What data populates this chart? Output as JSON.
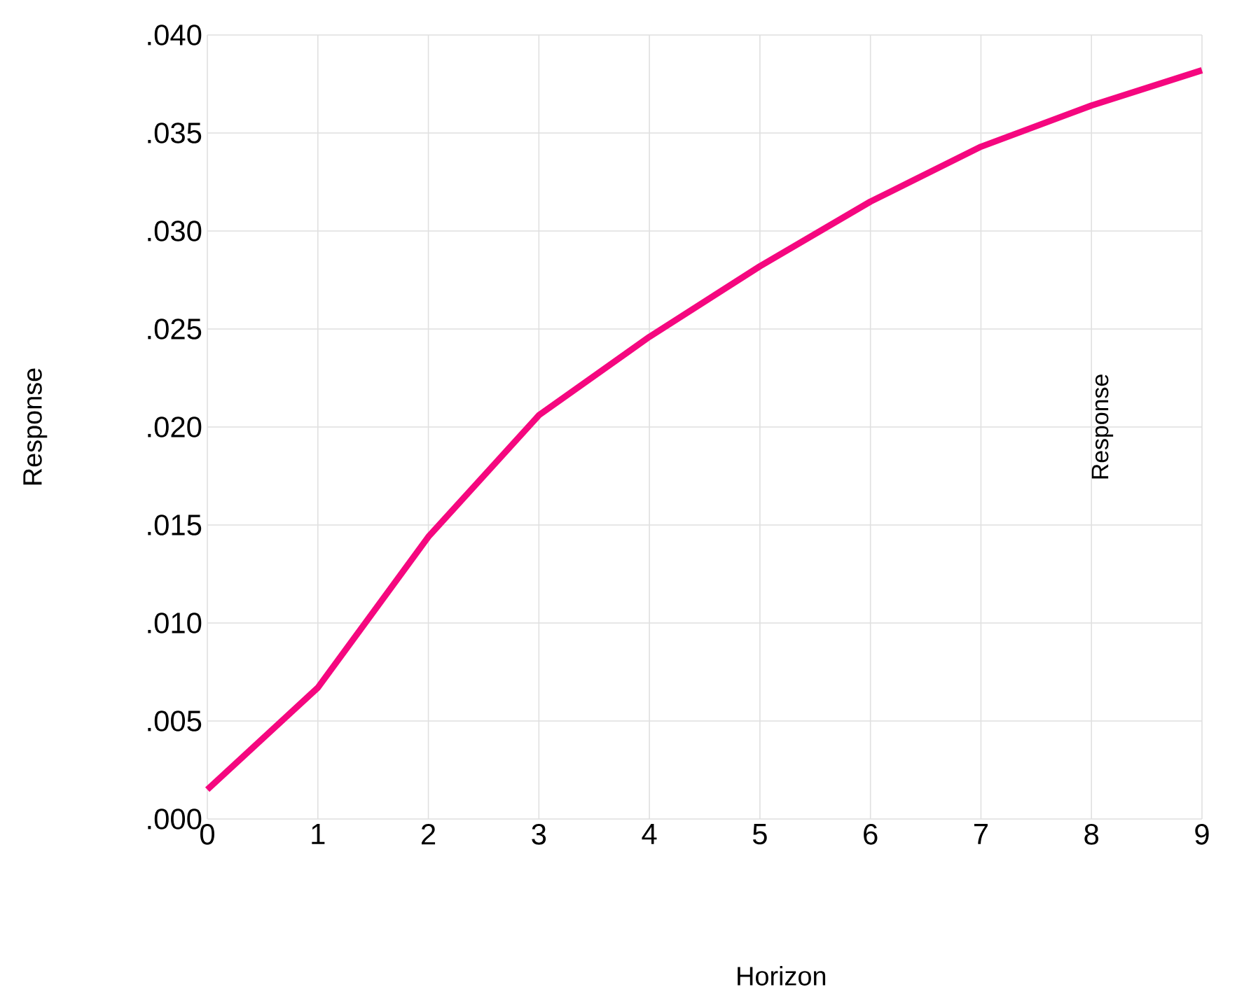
{
  "chart_data": {
    "type": "line",
    "xlabel": "Horizon",
    "ylabel": "Response",
    "annotations": [
      "Response"
    ],
    "x": [
      0,
      1,
      2,
      3,
      4,
      5,
      6,
      7,
      8,
      9
    ],
    "series": [
      {
        "color": "#f5077f",
        "values": [
          0.0015,
          0.0067,
          0.0144,
          0.0206,
          0.0246,
          0.0282,
          0.0315,
          0.0343,
          0.0364,
          0.0382
        ]
      }
    ],
    "xlim": [
      0,
      9
    ],
    "xticks": [
      0,
      1,
      2,
      3,
      4,
      5,
      6,
      7,
      8,
      9
    ],
    "ylim": [
      0,
      0.04
    ],
    "yticks": [
      {
        "value": 0,
        "label": ".000"
      },
      {
        "value": 0.005,
        "label": ".005"
      },
      {
        "value": 0.01,
        "label": ".010"
      },
      {
        "value": 0.015,
        "label": ".015"
      },
      {
        "value": 0.02,
        "label": ".020"
      },
      {
        "value": 0.025,
        "label": ".025"
      },
      {
        "value": 0.03,
        "label": ".030"
      },
      {
        "value": 0.035,
        "label": ".035"
      },
      {
        "value": 0.04,
        "label": ".040"
      }
    ],
    "grid": true,
    "marker": "none",
    "line_style": "solid"
  }
}
